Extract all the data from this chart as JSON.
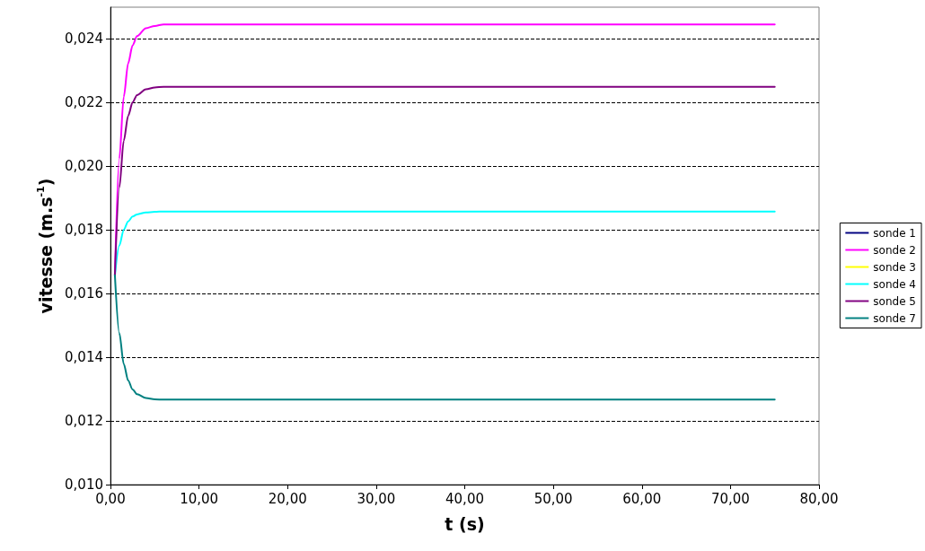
{
  "chart_data": {
    "type": "line",
    "xlabel": "t (s)",
    "ylabel": "vitesse (m.s$^{-1}$)",
    "x": [
      0.5,
      1,
      1.5,
      2,
      2.5,
      3,
      4,
      5,
      6,
      75
    ],
    "series": [
      {
        "name": "sonde 1",
        "color": "#000080",
        "values": [
          null,
          null,
          null,
          null,
          null,
          null,
          null,
          null,
          null,
          null
        ]
      },
      {
        "name": "sonde 2",
        "color": "#ff00ff",
        "values": [
          0.01658,
          0.02024,
          0.02218,
          0.02324,
          0.0238,
          0.02409,
          0.02434,
          0.02441,
          0.02446,
          0.02446
        ]
      },
      {
        "name": "sonde 3",
        "color": "#ffff00",
        "values": [
          null,
          null,
          null,
          null,
          null,
          null,
          null,
          null,
          null,
          null
        ]
      },
      {
        "name": "sonde 4",
        "color": "#00ffff",
        "values": [
          0.01658,
          0.01751,
          0.01801,
          0.01827,
          0.01842,
          0.01849,
          0.01855,
          0.01857,
          0.01858,
          0.01858
        ]
      },
      {
        "name": "sonde 5",
        "color": "#800080",
        "values": [
          0.01658,
          0.01933,
          0.0208,
          0.02159,
          0.02201,
          0.02224,
          0.02242,
          0.02248,
          0.0225,
          0.0225
        ]
      },
      {
        "name": "sonde 7",
        "color": "#008080",
        "values": [
          0.01658,
          0.01476,
          0.01379,
          0.01327,
          0.01299,
          0.01284,
          0.01272,
          0.01268,
          0.01267,
          0.01267
        ]
      }
    ],
    "xlim": [
      0,
      80
    ],
    "xticks": [
      {
        "value": 0,
        "label": "0,00"
      },
      {
        "value": 10,
        "label": "10,00"
      },
      {
        "value": 20,
        "label": "20,00"
      },
      {
        "value": 30,
        "label": "30,00"
      },
      {
        "value": 40,
        "label": "40,00"
      },
      {
        "value": 50,
        "label": "50,00"
      },
      {
        "value": 60,
        "label": "60,00"
      },
      {
        "value": 70,
        "label": "70,00"
      },
      {
        "value": 80,
        "label": "80,00"
      }
    ],
    "ylim": [
      0.01,
      0.025
    ],
    "yticks": [
      {
        "value": 0.01,
        "label": "0,010"
      },
      {
        "value": 0.012,
        "label": "0,012"
      },
      {
        "value": 0.014,
        "label": "0,014"
      },
      {
        "value": 0.016,
        "label": "0,016"
      },
      {
        "value": 0.018,
        "label": "0,018"
      },
      {
        "value": 0.02,
        "label": "0,020"
      },
      {
        "value": 0.022,
        "label": "0,022"
      },
      {
        "value": 0.024,
        "label": "0,024"
      }
    ],
    "grid": "y",
    "legend": "right",
    "marker": "none",
    "line_style": "solid"
  }
}
